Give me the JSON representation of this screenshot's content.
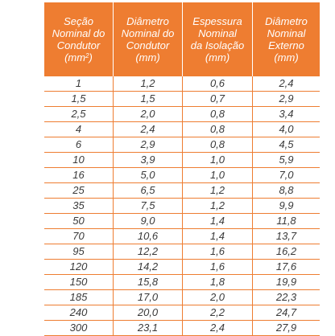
{
  "table": {
    "headers": [
      {
        "lines": [
          "Seção",
          "Nominal do",
          "Condutor",
          "(mm"
        ],
        "sup": "2",
        "after": ")"
      },
      {
        "lines": [
          "Diâmetro",
          "Nominal do",
          "Condutor",
          "(mm)"
        ],
        "sup": "",
        "after": ""
      },
      {
        "lines": [
          "Espessura",
          "Nominal",
          "da Isolação",
          "(mm)"
        ],
        "sup": "",
        "after": ""
      },
      {
        "lines": [
          "Diâmetro",
          "Nominal",
          "Externo",
          "(mm)"
        ],
        "sup": "",
        "after": ""
      }
    ],
    "rows": [
      [
        "1",
        "1,2",
        "0,6",
        "2,4"
      ],
      [
        "1,5",
        "1,5",
        "0,7",
        "2,9"
      ],
      [
        "2,5",
        "2,0",
        "0,8",
        "3,4"
      ],
      [
        "4",
        "2,4",
        "0,8",
        "4,0"
      ],
      [
        "6",
        "2,9",
        "0,8",
        "4,5"
      ],
      [
        "10",
        "3,9",
        "1,0",
        "5,9"
      ],
      [
        "16",
        "5,0",
        "1,0",
        "7,0"
      ],
      [
        "25",
        "6,5",
        "1,2",
        "8,8"
      ],
      [
        "35",
        "7,5",
        "1,2",
        "9,9"
      ],
      [
        "50",
        "9,0",
        "1,4",
        "11,8"
      ],
      [
        "70",
        "10,6",
        "1,4",
        "13,7"
      ],
      [
        "95",
        "12,2",
        "1,6",
        "16,2"
      ],
      [
        "120",
        "14,2",
        "1,6",
        "17,6"
      ],
      [
        "150",
        "15,8",
        "1,8",
        "19,9"
      ],
      [
        "185",
        "17,0",
        "2,0",
        "22,3"
      ],
      [
        "240",
        "20,0",
        "2,2",
        "24,7"
      ],
      [
        "300",
        "23,1",
        "2,4",
        "27,9"
      ]
    ]
  },
  "colors": {
    "header_bg": "#ee7d31",
    "header_text": "#ffffff",
    "rule": "#ee7d31",
    "body_text": "#3a3a3a"
  }
}
